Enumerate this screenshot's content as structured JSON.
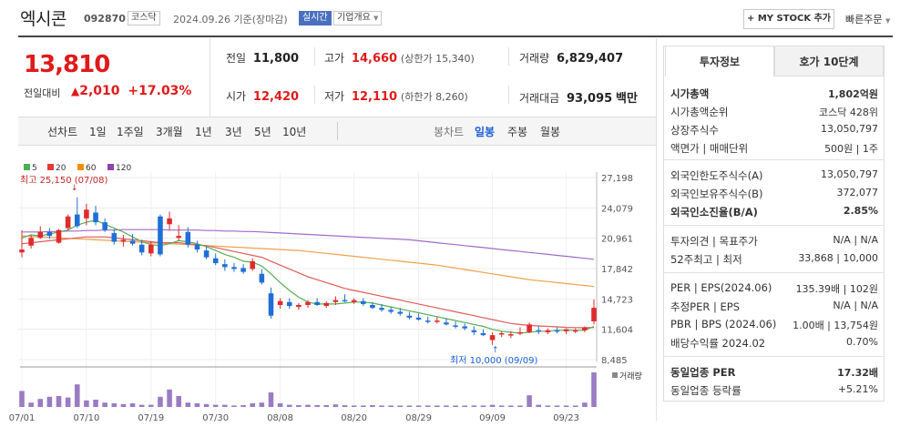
{
  "header": {
    "name": "엑시콘",
    "code": "092870",
    "market": "코스닥",
    "date": "2024.09.26 기준(장마감)",
    "realtime": "실시간",
    "overview": "기업개요",
    "mystock": "+ MY STOCK 추가",
    "quick": "빠른주문"
  },
  "quote": {
    "price": "13,810",
    "change_label": "전일대비",
    "change_amount": "2,010",
    "change_pct": "+17.03%",
    "up_arrow": "▲"
  },
  "stats": {
    "prev_label": "전일",
    "prev": "11,800",
    "high_label": "고가",
    "high": "14,660",
    "high_sub": "(상한가 15,340)",
    "vol_label": "거래량",
    "vol": "6,829,407",
    "open_label": "시가",
    "open": "12,420",
    "low_label": "저가",
    "low": "12,110",
    "low_sub": "(하한가 8,260)",
    "amt_label": "거래대금",
    "amt": "93,095",
    "amt_unit": "백만"
  },
  "chart_nav": {
    "line": "선차트",
    "periods": [
      "1일",
      "1주일",
      "3개월",
      "1년",
      "3년",
      "5년",
      "10년"
    ],
    "candle": "봉차트",
    "candles": [
      "일봉",
      "주봉",
      "월봉"
    ]
  },
  "legend": [
    {
      "label": "5",
      "color": "#4caf50"
    },
    {
      "label": "20",
      "color": "#e53935"
    },
    {
      "label": "60",
      "color": "#fb8c00"
    },
    {
      "label": "120",
      "color": "#8e44ad"
    }
  ],
  "annotations": {
    "high": "최고 25,150 (07/08)",
    "low": "최저 10,000 (09/09)",
    "volume_label": "거래량"
  },
  "y_ticks": [
    "27,198",
    "24,079",
    "20,961",
    "17,842",
    "14,723",
    "11,604",
    "8,485"
  ],
  "x_ticks": [
    "07/01",
    "07/10",
    "07/19",
    "07/30",
    "08/08",
    "08/20",
    "08/29",
    "09/09",
    "09/23"
  ],
  "panel": {
    "tab1": "투자정보",
    "tab2": "호가 10단계",
    "rows": [
      {
        "l": "시가총액",
        "r": "1,802억원",
        "bold": true
      },
      {
        "l": "시가총액순위",
        "r": "코스닥 428위"
      },
      {
        "l": "상장주식수",
        "r": "13,050,797"
      },
      {
        "l": "액면가 | 매매단위",
        "r": "500원 | 1주"
      },
      {
        "l": "외국인한도주식수(A)",
        "r": "13,050,797"
      },
      {
        "l": "외국인보유주식수(B)",
        "r": "372,077"
      },
      {
        "l": "외국인소진율(B/A)",
        "r": "2.85%",
        "bold": true
      },
      {
        "l": "투자의견 | 목표주가",
        "r": "N/A | N/A"
      },
      {
        "l": "52주최고 | 최저",
        "r": "33,868 | 10,000"
      },
      {
        "l": "PER | EPS(2024.06)",
        "r": "135.39배 | 102원"
      },
      {
        "l": "추정PER | EPS",
        "r": "N/A | N/A"
      },
      {
        "l": "PBR | BPS (2024.06)",
        "r": "1.00배 | 13,754원"
      },
      {
        "l": "배당수익률 2024.02",
        "r": "0.70%"
      },
      {
        "l": "동일업종 PER",
        "r": "17.32배",
        "bold": true
      },
      {
        "l": "동일업종 등락률",
        "r": "+5.21%",
        "red": true
      }
    ]
  },
  "chart_data": {
    "type": "candlestick",
    "ylim": [
      8485,
      27198
    ],
    "candles": [
      [
        19500,
        21800,
        19000,
        19800
      ],
      [
        20200,
        21300,
        19900,
        21000
      ],
      [
        21000,
        22200,
        20900,
        21600
      ],
      [
        21600,
        22000,
        20900,
        21200
      ],
      [
        20500,
        21900,
        20400,
        21800
      ],
      [
        22000,
        23400,
        21800,
        23200
      ],
      [
        23400,
        25150,
        22000,
        22200
      ],
      [
        23000,
        24500,
        22300,
        23900
      ],
      [
        23600,
        24300,
        22300,
        22600
      ],
      [
        22600,
        23000,
        21600,
        21800
      ],
      [
        21500,
        21900,
        20300,
        20600
      ],
      [
        20600,
        21300,
        20100,
        20800
      ],
      [
        20700,
        21400,
        20200,
        20400
      ],
      [
        20300,
        20800,
        19200,
        19500
      ],
      [
        19400,
        20600,
        19100,
        20300
      ],
      [
        23200,
        23400,
        19100,
        19300
      ],
      [
        22400,
        23700,
        21800,
        23000
      ],
      [
        21000,
        22300,
        20700,
        21200
      ],
      [
        21600,
        22100,
        20000,
        20300
      ],
      [
        20300,
        20700,
        19500,
        19800
      ],
      [
        19700,
        20100,
        18800,
        19000
      ],
      [
        18900,
        19400,
        18200,
        18400
      ],
      [
        18300,
        18800,
        17600,
        18000
      ],
      [
        18000,
        18400,
        17500,
        17800
      ],
      [
        17900,
        18300,
        17300,
        17500
      ],
      [
        17800,
        18900,
        17600,
        18600
      ],
      [
        17300,
        17800,
        16200,
        16400
      ],
      [
        15300,
        15900,
        12700,
        13000
      ],
      [
        14100,
        14800,
        13700,
        14500
      ],
      [
        14400,
        14800,
        13700,
        14000
      ],
      [
        13900,
        14300,
        13600,
        14100
      ],
      [
        14100,
        14600,
        13800,
        14400
      ],
      [
        14400,
        14800,
        14000,
        14100
      ],
      [
        14000,
        14500,
        13800,
        14300
      ],
      [
        14400,
        15000,
        14100,
        14600
      ],
      [
        14600,
        15200,
        14400,
        14500
      ],
      [
        14400,
        14800,
        14200,
        14600
      ],
      [
        14500,
        14800,
        14000,
        14200
      ],
      [
        14100,
        14400,
        13700,
        13800
      ],
      [
        13800,
        14200,
        13400,
        13600
      ],
      [
        13600,
        13900,
        13200,
        13400
      ],
      [
        13400,
        13800,
        13000,
        13200
      ],
      [
        13000,
        13400,
        12600,
        12800
      ],
      [
        12800,
        13200,
        12500,
        12600
      ],
      [
        12500,
        12900,
        12200,
        12400
      ],
      [
        12400,
        12900,
        12200,
        12500
      ],
      [
        12300,
        12700,
        12000,
        12100
      ],
      [
        12000,
        12400,
        11700,
        11900
      ],
      [
        11900,
        12200,
        11500,
        11700
      ],
      [
        11500,
        11900,
        11000,
        11300
      ],
      [
        11200,
        11600,
        10900,
        11000
      ],
      [
        10500,
        11300,
        10000,
        11000
      ],
      [
        11100,
        11400,
        10800,
        11200
      ],
      [
        11000,
        11400,
        10700,
        11100
      ],
      [
        11200,
        11800,
        11000,
        11300
      ],
      [
        11300,
        12300,
        11200,
        12100
      ],
      [
        11500,
        11900,
        11100,
        11400
      ],
      [
        11300,
        11700,
        11100,
        11500
      ],
      [
        11500,
        11800,
        11200,
        11400
      ],
      [
        11400,
        11700,
        11100,
        11600
      ],
      [
        11400,
        11700,
        11200,
        11500
      ],
      [
        11500,
        11900,
        11300,
        11800
      ],
      [
        12420,
        14660,
        12110,
        13810
      ]
    ],
    "volume": [
      0.44,
      0.12,
      0.22,
      0.28,
      0.3,
      0.26,
      0.62,
      0.18,
      0.2,
      0.12,
      0.1,
      0.08,
      0.1,
      0.06,
      0.06,
      0.28,
      0.48,
      0.3,
      0.12,
      0.1,
      0.08,
      0.06,
      0.06,
      0.04,
      0.05,
      0.1,
      0.12,
      0.4,
      0.1,
      0.06,
      0.05,
      0.06,
      0.05,
      0.05,
      0.07,
      0.05,
      0.04,
      0.04,
      0.05,
      0.04,
      0.04,
      0.04,
      0.04,
      0.04,
      0.04,
      0.04,
      0.04,
      0.04,
      0.04,
      0.04,
      0.04,
      0.06,
      0.04,
      0.04,
      0.04,
      0.32,
      0.06,
      0.04,
      0.04,
      0.04,
      0.04,
      0.12,
      0.95
    ],
    "ma5": [
      21000,
      21300,
      21200,
      21400,
      21600,
      21800,
      22300,
      22600,
      22800,
      22400,
      22000,
      21600,
      21100,
      20600,
      20300,
      20200,
      20400,
      20700,
      20600,
      20400,
      20100,
      19700,
      19300,
      19000,
      18600,
      18500,
      18100,
      17300,
      16400,
      15600,
      14900,
      14400,
      14200,
      14200,
      14200,
      14300,
      14400,
      14400,
      14300,
      14100,
      13900,
      13700,
      13500,
      13300,
      13100,
      12900,
      12700,
      12500,
      12300,
      12100,
      11900,
      11600,
      11400,
      11300,
      11200,
      11300,
      11400,
      11400,
      11500,
      11500,
      11500,
      11500,
      11900
    ],
    "ma20": [
      20400,
      20500,
      20600,
      20700,
      20800,
      20900,
      21000,
      21100,
      21100,
      21100,
      21000,
      20900,
      20800,
      20700,
      20600,
      20500,
      20500,
      20500,
      20400,
      20300,
      20200,
      20000,
      19800,
      19600,
      19400,
      19200,
      19000,
      18600,
      18200,
      17800,
      17400,
      17000,
      16700,
      16400,
      16100,
      15800,
      15600,
      15400,
      15200,
      15000,
      14800,
      14600,
      14400,
      14200,
      14000,
      13800,
      13600,
      13400,
      13200,
      13000,
      12800,
      12600,
      12400,
      12200,
      12100,
      12000,
      11950,
      11900,
      11850,
      11800,
      11780,
      11760,
      11800
    ],
    "ma60": [
      21200,
      21150,
      21100,
      21050,
      21000,
      20950,
      20900,
      20850,
      20800,
      20750,
      20700,
      20650,
      20600,
      20550,
      20500,
      20450,
      20400,
      20350,
      20300,
      20250,
      20200,
      20150,
      20100,
      20050,
      20000,
      19950,
      19900,
      19850,
      19800,
      19750,
      19700,
      19600,
      19500,
      19400,
      19300,
      19200,
      19100,
      19000,
      18900,
      18800,
      18700,
      18600,
      18500,
      18400,
      18300,
      18200,
      18050,
      17900,
      17750,
      17600,
      17450,
      17300,
      17150,
      17000,
      16850,
      16700,
      16600,
      16500,
      16400,
      16300,
      16200,
      16100,
      16000
    ],
    "ma120": [
      21600,
      21600,
      21600,
      21650,
      21650,
      21700,
      21700,
      21750,
      21750,
      21800,
      21800,
      21850,
      21850,
      21850,
      21850,
      21850,
      21800,
      21800,
      21800,
      21800,
      21750,
      21750,
      21700,
      21700,
      21650,
      21650,
      21600,
      21550,
      21500,
      21450,
      21400,
      21350,
      21300,
      21250,
      21200,
      21150,
      21100,
      21050,
      21000,
      20950,
      20900,
      20850,
      20800,
      20700,
      20600,
      20500,
      20400,
      20300,
      20200,
      20100,
      20000,
      19900,
      19800,
      19700,
      19600,
      19500,
      19400,
      19300,
      19200,
      19100,
      19000,
      18900,
      18800
    ]
  }
}
